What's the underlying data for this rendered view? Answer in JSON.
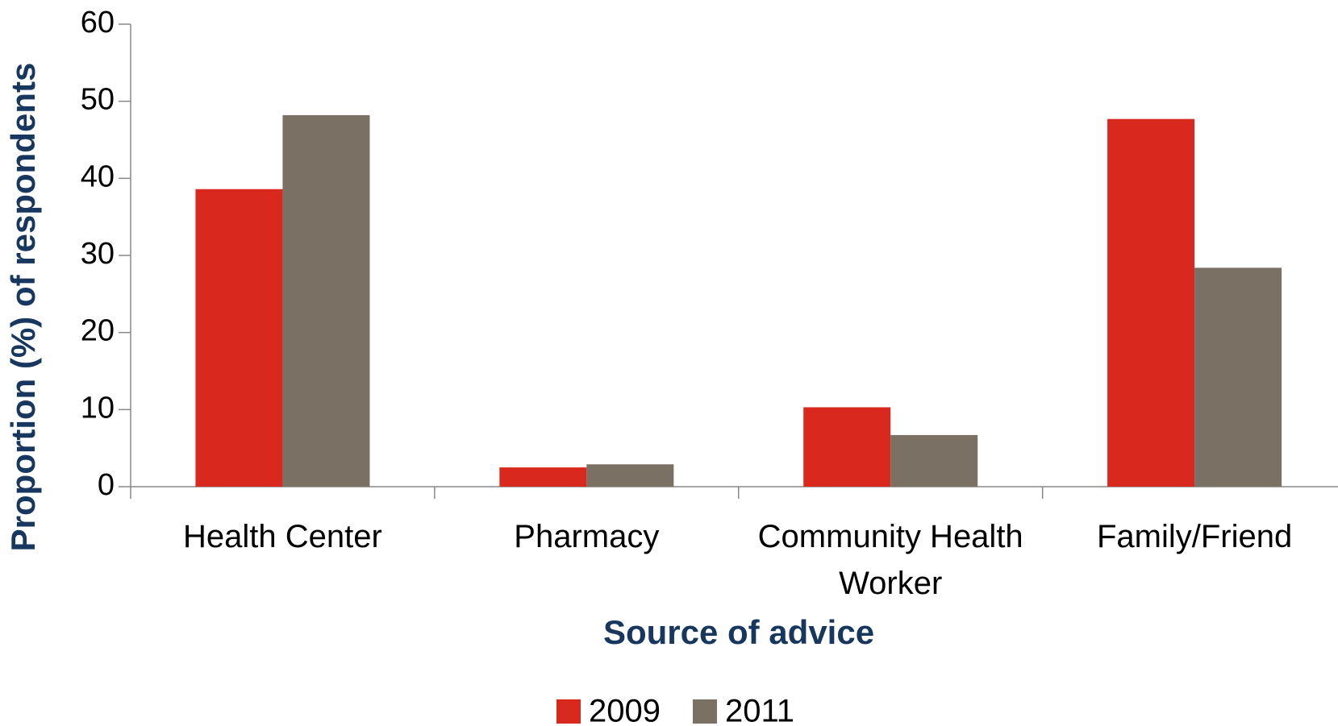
{
  "chart_data": {
    "type": "bar",
    "x_label": "Source of advice",
    "y_label": "Proportion (%) of respondents",
    "categories": [
      "Health Center",
      "Pharmacy",
      "Community Health Worker",
      "Family/Friend"
    ],
    "series": [
      {
        "name": "2009",
        "color": "#d9291e",
        "values": [
          38.6,
          2.5,
          10.3,
          47.7
        ]
      },
      {
        "name": "2011",
        "color": "#7a7064",
        "values": [
          48.2,
          2.9,
          6.7,
          28.4
        ]
      }
    ],
    "ylim": [
      0,
      60
    ],
    "yticks": [
      0,
      10,
      20,
      30,
      40,
      50,
      60
    ],
    "grid": false,
    "legend": "bottom"
  }
}
